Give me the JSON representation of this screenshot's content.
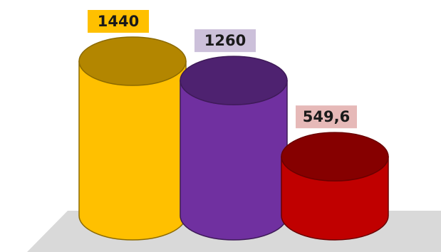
{
  "chart_data": {
    "type": "bar",
    "style": "3d-cylinder",
    "title": "",
    "xlabel": "",
    "ylabel": "",
    "grid": false,
    "legend": "none",
    "categories": [
      "",
      "",
      ""
    ],
    "values": [
      1440,
      1260,
      549.6
    ],
    "value_labels": [
      "1440",
      "1260",
      "549,6"
    ],
    "bar_colors": [
      "#FFC000",
      "#7030A0",
      "#C00000"
    ],
    "label_backgrounds": [
      "#FFC000",
      "#CCC0DA",
      "#E6B9B8"
    ],
    "floor_color": "#D9D9D9"
  }
}
